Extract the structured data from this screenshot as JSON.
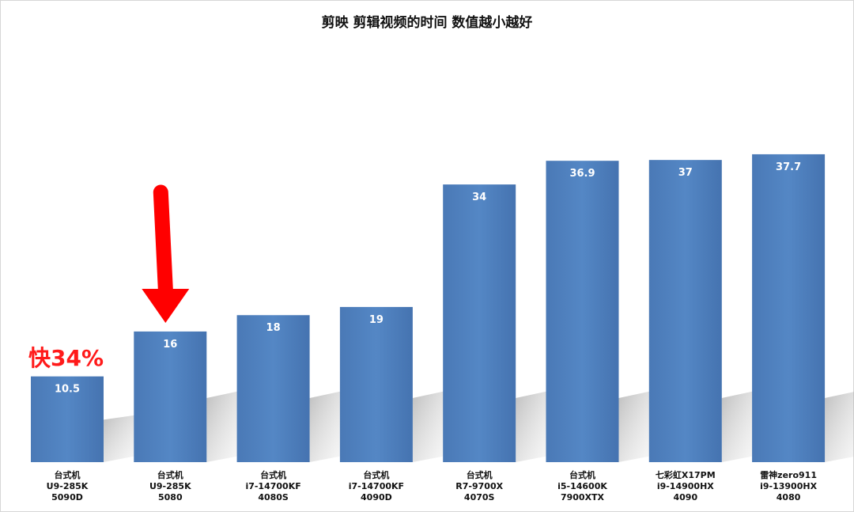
{
  "chart_data": {
    "type": "bar",
    "title": "剪映 剪辑视频的时间 数值越小越好",
    "xlabel": "",
    "ylabel": "",
    "ylim": [
      0,
      40
    ],
    "grid": false,
    "legend": "none",
    "bar_color": "#4f81bd",
    "categories": [
      [
        "台式机",
        "U9-285K",
        "5090D"
      ],
      [
        "台式机",
        "U9-285K",
        "5080"
      ],
      [
        "台式机",
        "i7-14700KF",
        "4080S"
      ],
      [
        "台式机",
        "i7-14700KF",
        "4090D"
      ],
      [
        "台式机",
        "R7-9700X",
        "4070S"
      ],
      [
        "台式机",
        "i5-14600K",
        "7900XTX"
      ],
      [
        "七彩虹X17PM",
        "i9-14900HX",
        "4090"
      ],
      [
        "雷神zero911",
        "i9-13900HX",
        "4080"
      ]
    ],
    "values": [
      10.5,
      16,
      18,
      19,
      34,
      36.9,
      37,
      37.7
    ],
    "value_labels": [
      "10.5",
      "16",
      "18",
      "19",
      "34",
      "36.9",
      "37",
      "37.7"
    ],
    "annotations": [
      {
        "text": "快34%",
        "category_index": 0,
        "color": "#ff1a1a"
      },
      {
        "type": "arrow",
        "category_index": 1,
        "color": "#ff0000"
      }
    ]
  }
}
